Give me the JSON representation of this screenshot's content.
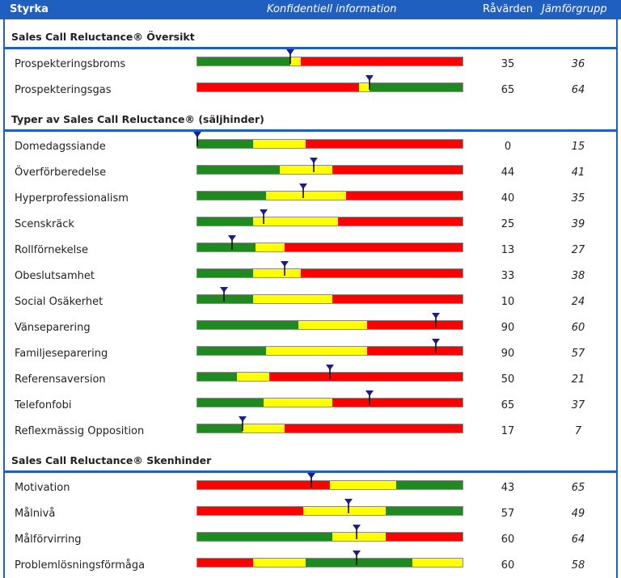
{
  "header": {
    "title": "Styrka",
    "confidential": "Konfidentiell information",
    "raw_label": "Råvärden",
    "peer_label": "Jämförgrupp"
  },
  "colors": {
    "green": "#1f8a1f",
    "yellow": "#ffff00",
    "red": "#ff0000",
    "marker": "#1a1a9e",
    "accent": "#1f5fbf"
  },
  "sections": [
    {
      "title": "Sales Call Reluctance® Översikt",
      "rows": [
        {
          "label": "Prospekteringsbroms",
          "raw": "35",
          "peer": "36",
          "value": 35,
          "segments": [
            [
              "green",
              35
            ],
            [
              "yellow",
              4
            ],
            [
              "red",
              61
            ]
          ]
        },
        {
          "label": "Prospekteringsgas",
          "raw": "65",
          "peer": "64",
          "value": 65,
          "segments": [
            [
              "red",
              61
            ],
            [
              "yellow",
              4
            ],
            [
              "green",
              35
            ]
          ]
        }
      ]
    },
    {
      "title": "Typer av Sales Call Reluctance® (säljhinder)",
      "rows": [
        {
          "label": "Domedagssiande",
          "raw": "0",
          "peer": "15",
          "value": 0,
          "segments": [
            [
              "green",
              21
            ],
            [
              "yellow",
              20
            ],
            [
              "red",
              59
            ]
          ]
        },
        {
          "label": "Överförberedelse",
          "raw": "44",
          "peer": "41",
          "value": 44,
          "segments": [
            [
              "green",
              31
            ],
            [
              "yellow",
              20
            ],
            [
              "red",
              49
            ]
          ]
        },
        {
          "label": "Hyperprofessionalism",
          "raw": "40",
          "peer": "35",
          "value": 40,
          "segments": [
            [
              "green",
              26
            ],
            [
              "yellow",
              30
            ],
            [
              "red",
              44
            ]
          ]
        },
        {
          "label": "Scenskräck",
          "raw": "25",
          "peer": "39",
          "value": 25,
          "segments": [
            [
              "green",
              21
            ],
            [
              "yellow",
              32
            ],
            [
              "red",
              47
            ]
          ]
        },
        {
          "label": "Rollförnekelse",
          "raw": "13",
          "peer": "27",
          "value": 13,
          "segments": [
            [
              "green",
              22
            ],
            [
              "yellow",
              11
            ],
            [
              "red",
              67
            ]
          ]
        },
        {
          "label": "Obeslutsamhet",
          "raw": "33",
          "peer": "38",
          "value": 33,
          "segments": [
            [
              "green",
              21
            ],
            [
              "yellow",
              18
            ],
            [
              "red",
              61
            ]
          ]
        },
        {
          "label": "Social Osäkerhet",
          "raw": "10",
          "peer": "24",
          "value": 10,
          "segments": [
            [
              "green",
              21
            ],
            [
              "yellow",
              30
            ],
            [
              "red",
              49
            ]
          ]
        },
        {
          "label": "Vänseparering",
          "raw": "90",
          "peer": "60",
          "value": 90,
          "segments": [
            [
              "green",
              38
            ],
            [
              "yellow",
              26
            ],
            [
              "red",
              36
            ]
          ]
        },
        {
          "label": "Familjeseparering",
          "raw": "90",
          "peer": "57",
          "value": 90,
          "segments": [
            [
              "green",
              26
            ],
            [
              "yellow",
              38
            ],
            [
              "red",
              36
            ]
          ]
        },
        {
          "label": "Referensaversion",
          "raw": "50",
          "peer": "21",
          "value": 50,
          "segments": [
            [
              "green",
              15
            ],
            [
              "yellow",
              12
            ],
            [
              "red",
              73
            ]
          ]
        },
        {
          "label": "Telefonfobi",
          "raw": "65",
          "peer": "37",
          "value": 65,
          "segments": [
            [
              "green",
              25
            ],
            [
              "yellow",
              26
            ],
            [
              "red",
              49
            ]
          ]
        },
        {
          "label": "Reflexmässig Opposition",
          "raw": "17",
          "peer": "7",
          "value": 17,
          "segments": [
            [
              "green",
              17
            ],
            [
              "yellow",
              16
            ],
            [
              "red",
              67
            ]
          ]
        }
      ]
    },
    {
      "title": "Sales Call Reluctance® Skenhinder",
      "rows": [
        {
          "label": "Motivation",
          "raw": "43",
          "peer": "65",
          "value": 43,
          "segments": [
            [
              "red",
              50
            ],
            [
              "yellow",
              25
            ],
            [
              "green",
              25
            ]
          ]
        },
        {
          "label": "Målnivå",
          "raw": "57",
          "peer": "49",
          "value": 57,
          "segments": [
            [
              "red",
              40
            ],
            [
              "yellow",
              31
            ],
            [
              "green",
              29
            ]
          ]
        },
        {
          "label": "Målförvirring",
          "raw": "60",
          "peer": "64",
          "value": 60,
          "segments": [
            [
              "green",
              51
            ],
            [
              "yellow",
              20
            ],
            [
              "red",
              29
            ]
          ]
        },
        {
          "label": "Problemlösningsförmåga",
          "raw": "60",
          "peer": "58",
          "value": 60,
          "segments": [
            [
              "red",
              21
            ],
            [
              "yellow",
              20
            ],
            [
              "green",
              40
            ],
            [
              "yellow",
              19
            ]
          ]
        }
      ]
    }
  ]
}
